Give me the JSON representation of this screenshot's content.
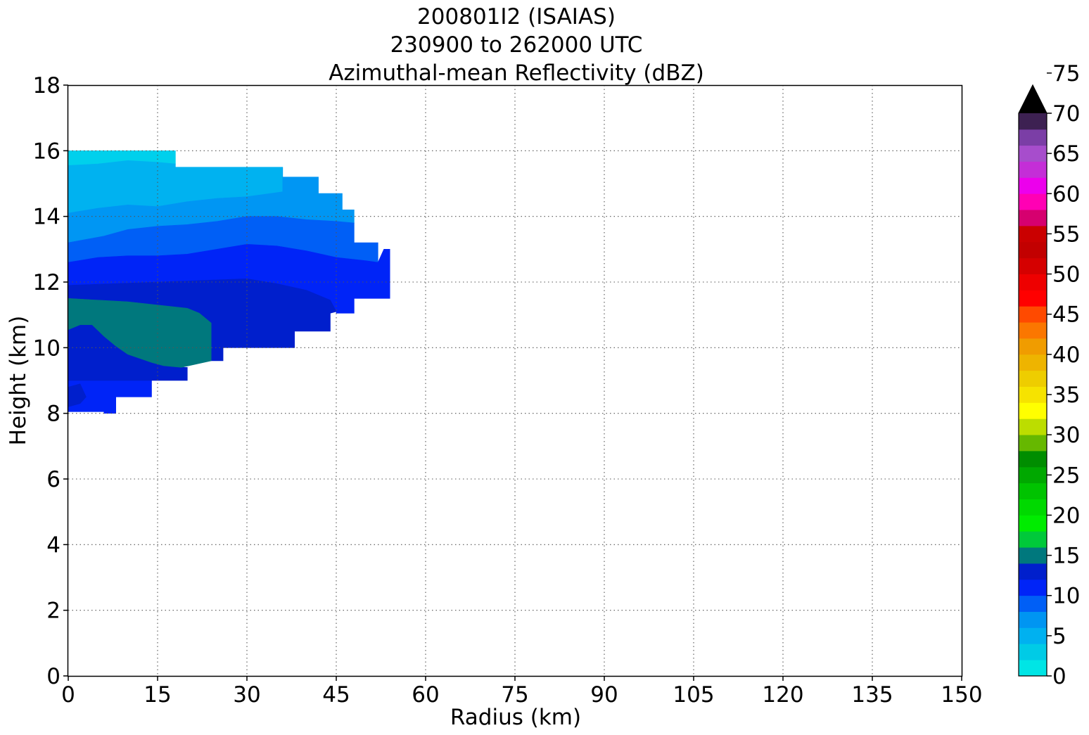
{
  "chart_data": {
    "type": "heatmap",
    "title_lines": [
      "200801I2 (ISAIAS)",
      "230900 to 262000 UTC",
      "Azimuthal-mean Reflectivity (dBZ)"
    ],
    "xlabel": "Radius (km)",
    "ylabel": "Height (km)",
    "xlim": [
      0,
      150
    ],
    "ylim": [
      0,
      18
    ],
    "xticks": [
      0,
      15,
      30,
      45,
      60,
      75,
      90,
      105,
      120,
      135,
      150
    ],
    "yticks": [
      0,
      2,
      4,
      6,
      8,
      10,
      12,
      14,
      16,
      18
    ],
    "grid": true,
    "grid_style": "dotted",
    "colorbar": {
      "placement": "right",
      "extend": "max",
      "levels_min": 0,
      "level_step": 2,
      "tick_labels": [
        0,
        5,
        10,
        15,
        20,
        25,
        30,
        35,
        40,
        45,
        50,
        55,
        60,
        65,
        70,
        75
      ],
      "colors": [
        "#00e5e5",
        "#00cbe6",
        "#00b1f0",
        "#0095f2",
        "#005ff6",
        "#0024f7",
        "#001fcc",
        "#00787d",
        "#00c93a",
        "#00ec00",
        "#00d900",
        "#00c300",
        "#00a800",
        "#008d00",
        "#66b800",
        "#bcdd00",
        "#ffff00",
        "#f6e300",
        "#eecd00",
        "#eeb400",
        "#f09c00",
        "#fb7700",
        "#ff4a00",
        "#ff0000",
        "#ee0000",
        "#d50000",
        "#c20000",
        "#ca0000",
        "#d6006f",
        "#ff00b4",
        "#ec00ec",
        "#c42ed7",
        "#a74dcc",
        "#7b3ea6",
        "#3d2152"
      ],
      "extend_color": "#000000"
    },
    "contour_regions": [
      {
        "dbz_range": [
          -2,
          0
        ],
        "color": "#00d0ec",
        "polygon": [
          [
            0,
            15.55
          ],
          [
            5,
            15.6
          ],
          [
            10,
            15.7
          ],
          [
            15,
            15.65
          ],
          [
            18,
            15.6
          ],
          [
            18,
            16
          ],
          [
            0,
            16
          ]
        ]
      },
      {
        "dbz_range": [
          0,
          2
        ],
        "color": "#00b2f0",
        "polygon": [
          [
            0,
            14.1
          ],
          [
            5,
            14.25
          ],
          [
            10,
            14.35
          ],
          [
            15,
            14.3
          ],
          [
            20,
            14.45
          ],
          [
            25,
            14.55
          ],
          [
            30,
            14.6
          ],
          [
            36,
            14.75
          ],
          [
            36,
            15.5
          ],
          [
            18,
            15.5
          ],
          [
            18,
            15.6
          ],
          [
            15,
            15.65
          ],
          [
            10,
            15.7
          ],
          [
            5,
            15.6
          ],
          [
            0,
            15.55
          ]
        ]
      },
      {
        "dbz_range": [
          2,
          4
        ],
        "color": "#0096f3",
        "polygon": [
          [
            0,
            13.2
          ],
          [
            6,
            13.4
          ],
          [
            10,
            13.6
          ],
          [
            15,
            13.7
          ],
          [
            20,
            13.75
          ],
          [
            25,
            13.85
          ],
          [
            30,
            14.0
          ],
          [
            35,
            14.0
          ],
          [
            40,
            13.9
          ],
          [
            45,
            13.85
          ],
          [
            48,
            13.8
          ],
          [
            48,
            14.2
          ],
          [
            46,
            14.2
          ],
          [
            46,
            14.7
          ],
          [
            42,
            14.7
          ],
          [
            42,
            15.2
          ],
          [
            36,
            15.2
          ],
          [
            36,
            15.5
          ],
          [
            36,
            14.75
          ],
          [
            30,
            14.6
          ],
          [
            25,
            14.55
          ],
          [
            20,
            14.45
          ],
          [
            15,
            14.3
          ],
          [
            10,
            14.35
          ],
          [
            5,
            14.25
          ],
          [
            0,
            14.1
          ]
        ]
      },
      {
        "dbz_range": [
          4,
          6
        ],
        "color": "#005ff6",
        "polygon": [
          [
            0,
            12.6
          ],
          [
            5,
            12.75
          ],
          [
            10,
            12.8
          ],
          [
            15,
            12.8
          ],
          [
            20,
            12.85
          ],
          [
            25,
            13.0
          ],
          [
            30,
            13.15
          ],
          [
            35,
            13.1
          ],
          [
            40,
            12.95
          ],
          [
            45,
            12.75
          ],
          [
            50,
            12.65
          ],
          [
            52,
            12.6
          ],
          [
            52,
            13.2
          ],
          [
            48,
            13.2
          ],
          [
            48,
            13.8
          ],
          [
            45,
            13.85
          ],
          [
            40,
            13.9
          ],
          [
            35,
            14.0
          ],
          [
            30,
            14.0
          ],
          [
            25,
            13.85
          ],
          [
            20,
            13.75
          ],
          [
            15,
            13.7
          ],
          [
            10,
            13.6
          ],
          [
            6,
            13.4
          ],
          [
            0,
            13.2
          ]
        ]
      },
      {
        "dbz_range": [
          6,
          8
        ],
        "color": "#0024f7",
        "polygon": [
          [
            0,
            11.9
          ],
          [
            15,
            12.0
          ],
          [
            30,
            12.1
          ],
          [
            35,
            11.95
          ],
          [
            40,
            11.75
          ],
          [
            44,
            11.45
          ],
          [
            45,
            11.1
          ],
          [
            45,
            11.05
          ],
          [
            48,
            11.05
          ],
          [
            48,
            11.5
          ],
          [
            54,
            11.5
          ],
          [
            54,
            13.0
          ],
          [
            53,
            13.0
          ],
          [
            52,
            12.6
          ],
          [
            50,
            12.65
          ],
          [
            45,
            12.75
          ],
          [
            40,
            12.95
          ],
          [
            35,
            13.1
          ],
          [
            30,
            13.15
          ],
          [
            25,
            13.0
          ],
          [
            20,
            12.85
          ],
          [
            15,
            12.8
          ],
          [
            10,
            12.8
          ],
          [
            5,
            12.75
          ],
          [
            0,
            12.6
          ]
        ]
      },
      {
        "dbz_range": [
          6,
          8
        ],
        "color": "#0024f7",
        "polygon": [
          [
            0,
            8.05
          ],
          [
            6,
            8.05
          ],
          [
            6,
            8.0
          ],
          [
            8,
            8.0
          ],
          [
            8,
            8.5
          ],
          [
            14,
            8.5
          ],
          [
            14,
            9.0
          ],
          [
            0,
            9.0
          ],
          [
            0,
            8.8
          ],
          [
            2,
            8.9
          ],
          [
            3,
            8.5
          ],
          [
            2,
            8.3
          ],
          [
            0,
            8.2
          ]
        ]
      },
      {
        "dbz_range": [
          8,
          10
        ],
        "color": "#001fcc",
        "polygon": [
          [
            0,
            11.5
          ],
          [
            5,
            11.45
          ],
          [
            10,
            11.4
          ],
          [
            15,
            11.3
          ],
          [
            20,
            11.2
          ],
          [
            22,
            11.05
          ],
          [
            24,
            10.75
          ],
          [
            24,
            9.6
          ],
          [
            26,
            9.6
          ],
          [
            26,
            10.0
          ],
          [
            38,
            10.0
          ],
          [
            38,
            10.5
          ],
          [
            44,
            10.5
          ],
          [
            44,
            11.05
          ],
          [
            45,
            11.1
          ],
          [
            44,
            11.45
          ],
          [
            40,
            11.75
          ],
          [
            35,
            11.95
          ],
          [
            30,
            12.1
          ],
          [
            15,
            12.0
          ],
          [
            0,
            11.9
          ]
        ]
      },
      {
        "dbz_range": [
          8,
          10
        ],
        "color": "#001fcc",
        "polygon": [
          [
            0,
            9.0
          ],
          [
            20,
            9.0
          ],
          [
            20,
            9.4
          ],
          [
            19,
            9.4
          ],
          [
            16,
            9.45
          ],
          [
            14,
            9.55
          ],
          [
            10,
            9.8
          ],
          [
            8,
            10.05
          ],
          [
            6,
            10.35
          ],
          [
            4,
            10.7
          ],
          [
            2,
            10.7
          ],
          [
            0,
            10.55
          ]
        ]
      },
      {
        "dbz_range": [
          8,
          10
        ],
        "color": "#001fcc",
        "polygon": [
          [
            0,
            8.2
          ],
          [
            2,
            8.3
          ],
          [
            3,
            8.5
          ],
          [
            2,
            8.9
          ],
          [
            0,
            8.8
          ]
        ]
      },
      {
        "dbz_range": [
          10,
          12
        ],
        "color": "#00787d",
        "polygon": [
          [
            0,
            11.5
          ],
          [
            5,
            11.45
          ],
          [
            10,
            11.4
          ],
          [
            15,
            11.3
          ],
          [
            20,
            11.2
          ],
          [
            22,
            11.05
          ],
          [
            24,
            10.75
          ],
          [
            24,
            9.6
          ],
          [
            19,
            9.4
          ],
          [
            16,
            9.45
          ],
          [
            14,
            9.55
          ],
          [
            10,
            9.8
          ],
          [
            8,
            10.05
          ],
          [
            6,
            10.35
          ],
          [
            4,
            10.7
          ],
          [
            2,
            10.7
          ],
          [
            0,
            10.55
          ]
        ]
      }
    ]
  }
}
